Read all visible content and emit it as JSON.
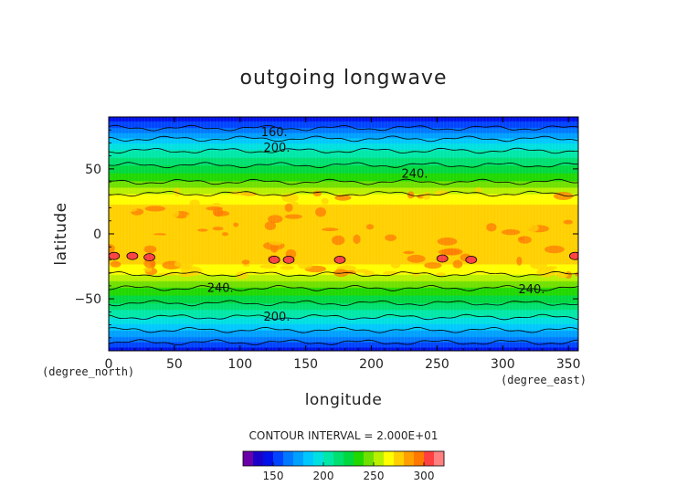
{
  "chart_data": {
    "type": "heatmap",
    "title": "outgoing longwave",
    "xlabel": "longitude",
    "ylabel": "latitude",
    "x_units": "(degree_east)",
    "y_units": "(degree_north)",
    "xlim": [
      0,
      357.5
    ],
    "ylim": [
      -90,
      90
    ],
    "x_ticks": [
      0,
      50,
      100,
      150,
      200,
      250,
      300,
      350
    ],
    "y_ticks": [
      -50,
      0,
      50
    ],
    "contour_interval_text": "CONTOUR INTERVAL = 2.000E+01",
    "contour_labels": [
      {
        "text": "160.",
        "lon": 126,
        "lat": 78
      },
      {
        "text": "200.",
        "lon": 128,
        "lat": 66
      },
      {
        "text": "240.",
        "lon": 233,
        "lat": 46
      },
      {
        "text": "240.",
        "lon": 85,
        "lat": -42
      },
      {
        "text": "240.",
        "lon": 322,
        "lat": -43
      },
      {
        "text": "200.",
        "lon": 128,
        "lat": -64
      }
    ],
    "zonal_mean_profile": {
      "lat": [
        -90,
        -80,
        -70,
        -60,
        -50,
        -40,
        -30,
        -20,
        -10,
        0,
        10,
        20,
        30,
        40,
        50,
        60,
        70,
        80,
        90
      ],
      "olr": [
        145,
        168,
        188,
        208,
        226,
        243,
        262,
        275,
        278,
        272,
        270,
        272,
        262,
        240,
        225,
        208,
        188,
        163,
        142
      ]
    },
    "colorbar": {
      "levels": [
        120,
        130,
        140,
        150,
        160,
        170,
        180,
        190,
        200,
        210,
        220,
        230,
        240,
        250,
        260,
        270,
        280,
        290,
        300,
        310,
        320
      ],
      "colors": [
        "#6a00a8",
        "#1a00c8",
        "#0010e8",
        "#0044ff",
        "#0078ff",
        "#00a0ff",
        "#00c8ff",
        "#00e0e0",
        "#00e8a8",
        "#00e070",
        "#00d840",
        "#20d800",
        "#70e000",
        "#b8f000",
        "#ffff00",
        "#ffd000",
        "#ffa000",
        "#ff7800",
        "#ff4040",
        "#ff8080"
      ],
      "tick_labels": [
        "150",
        "200",
        "250",
        "300"
      ],
      "tick_values": [
        150,
        200,
        250,
        300
      ]
    }
  }
}
